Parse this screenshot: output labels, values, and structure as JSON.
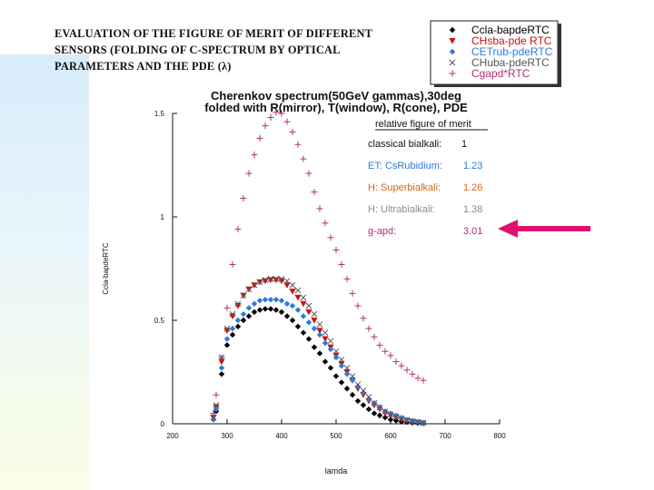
{
  "slide": {
    "heading": "EVALUATION OF THE FIGURE OF MERIT OF DIFFERENT SENSORS (FOLDING OF C-SPECTRUM BY OPTICAL PARAMETERS AND THE PDE (λ)"
  },
  "chart_data": {
    "type": "scatter",
    "title": "Cherenkov spectrum(50GeV gammas),30deg",
    "subtitle": "folded with R(mirror), T(window), R(cone), PDE",
    "xlabel": "lamda",
    "ylabel": "Ccla-bapdeRTC",
    "xlim": [
      200,
      800
    ],
    "ylim": [
      0,
      1.5
    ],
    "xticks": [
      200,
      300,
      400,
      500,
      600,
      700,
      800
    ],
    "yticks": [
      0,
      0.5,
      1,
      1.5
    ],
    "grid": false,
    "legend_position": "top-right-outside",
    "series": [
      {
        "name": "Ccla-bapdeRTC",
        "color": "#000000",
        "marker": "diamond",
        "x": [
          275,
          280,
          290,
          300,
          310,
          320,
          330,
          340,
          350,
          360,
          370,
          380,
          390,
          400,
          410,
          420,
          430,
          440,
          450,
          460,
          470,
          480,
          490,
          500,
          510,
          520,
          530,
          540,
          550,
          560,
          570,
          580,
          590,
          600,
          610,
          620,
          630,
          640,
          650,
          660
        ],
        "y": [
          0.02,
          0.06,
          0.24,
          0.38,
          0.43,
          0.47,
          0.5,
          0.52,
          0.54,
          0.55,
          0.555,
          0.555,
          0.55,
          0.54,
          0.52,
          0.5,
          0.47,
          0.44,
          0.41,
          0.37,
          0.34,
          0.3,
          0.27,
          0.23,
          0.2,
          0.17,
          0.14,
          0.11,
          0.09,
          0.07,
          0.05,
          0.04,
          0.03,
          0.02,
          0.015,
          0.01,
          0.008,
          0.005,
          0.003,
          0.002
        ]
      },
      {
        "name": "CHsba-pde RTC",
        "color": "#cc1111",
        "marker": "triangle-down",
        "x": [
          275,
          280,
          290,
          300,
          310,
          320,
          330,
          340,
          350,
          360,
          370,
          380,
          390,
          400,
          410,
          420,
          430,
          440,
          450,
          460,
          470,
          480,
          490,
          500,
          510,
          520,
          530,
          540,
          550,
          560,
          570,
          580,
          590,
          600,
          610,
          620,
          630,
          640,
          650,
          660
        ],
        "y": [
          0.03,
          0.08,
          0.3,
          0.45,
          0.52,
          0.57,
          0.62,
          0.65,
          0.67,
          0.685,
          0.69,
          0.695,
          0.695,
          0.69,
          0.67,
          0.64,
          0.61,
          0.58,
          0.54,
          0.5,
          0.45,
          0.41,
          0.37,
          0.33,
          0.29,
          0.25,
          0.21,
          0.17,
          0.14,
          0.11,
          0.09,
          0.07,
          0.05,
          0.04,
          0.03,
          0.02,
          0.015,
          0.01,
          0.006,
          0.003
        ]
      },
      {
        "name": "CETrub-pdeRTC",
        "color": "#2a7ae2",
        "marker": "diamond",
        "x": [
          275,
          280,
          290,
          300,
          310,
          320,
          330,
          340,
          350,
          360,
          370,
          380,
          390,
          400,
          410,
          420,
          430,
          440,
          450,
          460,
          470,
          480,
          490,
          500,
          510,
          520,
          530,
          540,
          550,
          560,
          570,
          580,
          590,
          600,
          610,
          620,
          630,
          640,
          650,
          660
        ],
        "y": [
          0.02,
          0.07,
          0.27,
          0.41,
          0.46,
          0.5,
          0.53,
          0.56,
          0.58,
          0.595,
          0.6,
          0.6,
          0.6,
          0.595,
          0.58,
          0.57,
          0.55,
          0.52,
          0.49,
          0.46,
          0.43,
          0.39,
          0.36,
          0.32,
          0.28,
          0.24,
          0.21,
          0.18,
          0.15,
          0.12,
          0.1,
          0.08,
          0.06,
          0.05,
          0.04,
          0.03,
          0.02,
          0.015,
          0.01,
          0.005
        ]
      },
      {
        "name": "CHuba-pdeRTC",
        "color": "#555555",
        "marker": "x",
        "x": [
          275,
          280,
          290,
          300,
          310,
          320,
          330,
          340,
          350,
          360,
          370,
          380,
          390,
          400,
          410,
          420,
          430,
          440,
          450,
          460,
          470,
          480,
          490,
          500,
          510,
          520,
          530,
          540,
          550,
          560,
          570,
          580,
          590,
          600,
          610,
          620,
          630,
          640,
          650,
          660
        ],
        "y": [
          0.03,
          0.09,
          0.32,
          0.46,
          0.53,
          0.58,
          0.62,
          0.65,
          0.67,
          0.685,
          0.695,
          0.7,
          0.7,
          0.7,
          0.69,
          0.67,
          0.645,
          0.61,
          0.57,
          0.53,
          0.48,
          0.44,
          0.4,
          0.35,
          0.31,
          0.27,
          0.23,
          0.19,
          0.16,
          0.13,
          0.1,
          0.08,
          0.06,
          0.045,
          0.035,
          0.025,
          0.018,
          0.012,
          0.008,
          0.004
        ]
      },
      {
        "name": "Cgapd*RTC",
        "color": "#b0307a",
        "marker": "plus",
        "x": [
          275,
          280,
          290,
          300,
          310,
          320,
          330,
          340,
          350,
          360,
          370,
          380,
          390,
          400,
          410,
          420,
          430,
          440,
          450,
          460,
          470,
          480,
          490,
          500,
          510,
          520,
          530,
          540,
          550,
          560,
          570,
          580,
          590,
          600,
          610,
          620,
          630,
          640,
          650,
          660
        ],
        "y": [
          0.05,
          0.14,
          0.32,
          0.56,
          0.77,
          0.94,
          1.09,
          1.21,
          1.3,
          1.38,
          1.44,
          1.48,
          1.505,
          1.5,
          1.46,
          1.41,
          1.35,
          1.28,
          1.21,
          1.12,
          1.04,
          0.97,
          0.9,
          0.84,
          0.77,
          0.7,
          0.63,
          0.57,
          0.51,
          0.46,
          0.42,
          0.38,
          0.35,
          0.33,
          0.3,
          0.28,
          0.26,
          0.24,
          0.22,
          0.21
        ]
      }
    ],
    "merit_table": {
      "header": "relative figure of merit",
      "rows": [
        {
          "label": "classical bialkali:",
          "value": "1",
          "color": "#111111"
        },
        {
          "label": "ET: CsRubidium:",
          "value": "1.23",
          "color": "#2a7ae2"
        },
        {
          "label": "H: Superbialkali:",
          "value": "1.26",
          "color": "#d8661a"
        },
        {
          "label": "H: Ultrabialkali:",
          "value": "1.38",
          "color": "#8c8c8c"
        },
        {
          "label": "g-apd:",
          "value": "3.01",
          "color": "#b0307a"
        }
      ]
    },
    "arrow_color": "#e0106e"
  }
}
